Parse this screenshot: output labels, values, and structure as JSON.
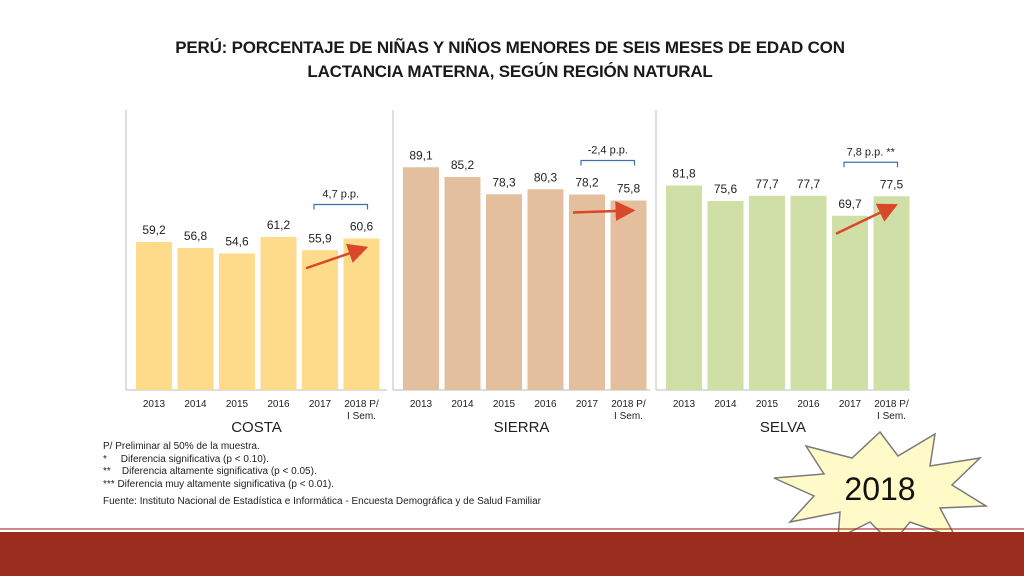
{
  "title_line1": "PERÚ: PORCENTAJE DE NIÑAS Y NIÑOS MENORES DE SEIS MESES DE EDAD CON",
  "title_line2": "LACTANCIA MATERNA, SEGÚN REGIÓN NATURAL",
  "chart_data": {
    "type": "bar",
    "title": "PERÚ: PORCENTAJE DE NIÑAS Y NIÑOS MENORES DE SEIS MESES DE EDAD CON LACTANCIA MATERNA, SEGÚN REGIÓN NATURAL",
    "categories": [
      "2013",
      "2014",
      "2015",
      "2016",
      "2017",
      "2018 P/ I Sem."
    ],
    "groups": [
      {
        "name": "COSTA",
        "color": "#fddb8a",
        "labels": [
          "59,2",
          "56,8",
          "54,6",
          "61,2",
          "55,9",
          "60,6"
        ],
        "values": [
          59.2,
          56.8,
          54.6,
          61.2,
          55.9,
          60.6
        ],
        "change": "4,7 p.p."
      },
      {
        "name": "SIERRA",
        "color": "#e4bf9d",
        "labels": [
          "89,1",
          "85,2",
          "78,3",
          "80,3",
          "78,2",
          "75,8"
        ],
        "values": [
          89.1,
          85.2,
          78.3,
          80.3,
          78.2,
          75.8
        ],
        "change": "-2,4 p.p."
      },
      {
        "name": "SELVA",
        "color": "#cfdfa6",
        "labels": [
          "81,8",
          "75,6",
          "77,7",
          "77,7",
          "69,7",
          "77,5"
        ],
        "values": [
          81.8,
          75.6,
          77.7,
          77.7,
          69.7,
          77.5
        ],
        "change": "7,8 p.p. **"
      }
    ],
    "ylim": [
      0,
      100
    ],
    "grid": false,
    "legend": "none"
  },
  "notes": [
    "P/ Preliminar al 50% de la muestra.",
    "*     Diferencia significativa (p < 0.10).",
    "**    Diferencia altamente significativa (p < 0.05).",
    "*** Diferencia muy altamente significativa (p < 0.01)."
  ],
  "source": "Fuente: Instituto Nacional de Estadística e Informática - Encuesta Demográfica y de Salud Familiar",
  "badge_text": "2018",
  "colors": {
    "arrow": "#d9482b",
    "bracket": "#3d6fb3",
    "footer": "#9b2d1f",
    "badge_fill": "#fffac8"
  }
}
